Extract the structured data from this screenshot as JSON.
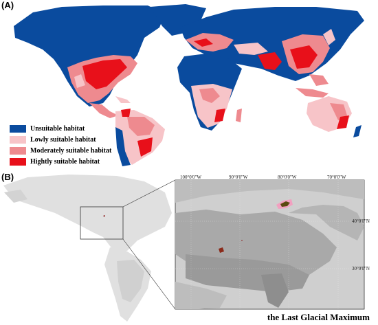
{
  "panel_a": {
    "label": "(A)",
    "legend": [
      {
        "label": "Unsuitable habitat",
        "color": "#0a4b9e"
      },
      {
        "label": "Lowly suitable habitat",
        "color": "#f7c4c8"
      },
      {
        "label": "Moderately suitable habitat",
        "color": "#ee8a8f"
      },
      {
        "label": "Hightly suitable habitat",
        "color": "#e8101a"
      }
    ]
  },
  "panel_b": {
    "label": "(B)",
    "longitude_labels": [
      "100°0'0\"W",
      "90°0'0\"W",
      "80°0'0\"W",
      "70°0'0\"W"
    ],
    "latitude_labels": [
      "40°0'0\"N",
      "30°0'0\"N"
    ],
    "caption": "the Last Glacial Maximum"
  }
}
